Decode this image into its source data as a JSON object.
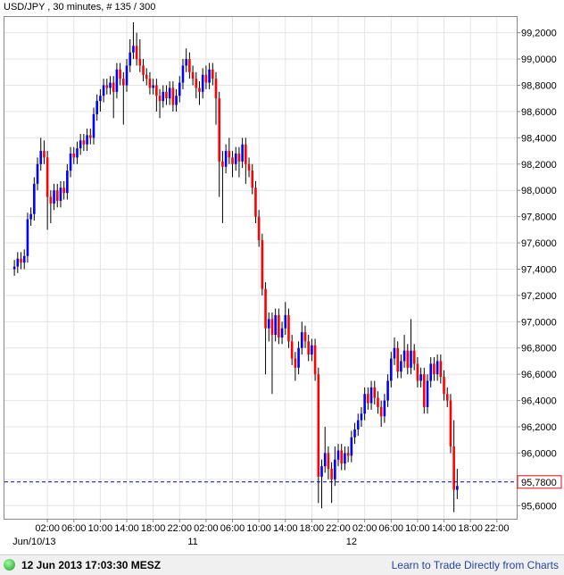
{
  "chart_data": {
    "type": "candlestick",
    "title": "USD/JPY , 30 minutes, # 135 / 300",
    "x": [
      -3,
      -2.5,
      -2,
      -1.5,
      -1,
      -0.5,
      0,
      0.5,
      1,
      1.5,
      2,
      2.5,
      3,
      3.5,
      4,
      4.5,
      5,
      5.5,
      6,
      6.5,
      7,
      7.5,
      8,
      8.5,
      9,
      9.5,
      10,
      10.5,
      11,
      11.5,
      12,
      12.5,
      13,
      13.5,
      14,
      14.5,
      15,
      15.5,
      16,
      16.5,
      17,
      17.5,
      18,
      18.5,
      19,
      19.5,
      20,
      20.5,
      21,
      21.5,
      22,
      22.5,
      23,
      23.5,
      24,
      24.5,
      25,
      25.5,
      26,
      26.5,
      27,
      27.5,
      28,
      28.5,
      29,
      29.5,
      30,
      30.5,
      31,
      31.5,
      32,
      32.5,
      33,
      33.5,
      34,
      34.5,
      35,
      35.5,
      36,
      36.5,
      37,
      37.5,
      38,
      38.5,
      39,
      39.5,
      40,
      40.5,
      41,
      41.5,
      42,
      42.5,
      43,
      43.5,
      44,
      44.5,
      45,
      45.5,
      46,
      46.5,
      47,
      47.5,
      48,
      48.5,
      49,
      49.5,
      50,
      50.5,
      51,
      51.5,
      52,
      52.5,
      53,
      53.5,
      54,
      54.5,
      55,
      55.5,
      56,
      56.5,
      57,
      57.5,
      58,
      58.5,
      59,
      59.5,
      60,
      60.5,
      61,
      61.5,
      62,
      62.5,
      63,
      63.5,
      64
    ],
    "open": [
      97.4,
      97.42,
      97.48,
      97.45,
      97.5,
      97.78,
      97.82,
      98.05,
      98.2,
      98.3,
      98.25,
      97.95,
      97.9,
      98.0,
      97.92,
      98.02,
      97.98,
      98.15,
      98.28,
      98.25,
      98.32,
      98.38,
      98.35,
      98.42,
      98.4,
      98.58,
      98.68,
      98.72,
      98.8,
      98.78,
      98.82,
      98.75,
      98.92,
      98.85,
      98.8,
      98.95,
      99.05,
      99.1,
      99.0,
      98.95,
      98.88,
      98.85,
      98.78,
      98.8,
      98.72,
      98.68,
      98.75,
      98.7,
      98.78,
      98.65,
      98.72,
      98.82,
      98.95,
      99.0,
      98.9,
      98.85,
      98.78,
      98.75,
      98.88,
      98.82,
      98.92,
      98.85,
      98.7,
      98.22,
      98.18,
      98.3,
      98.25,
      98.2,
      98.28,
      98.22,
      98.35,
      98.2,
      98.15,
      98.02,
      97.8,
      97.62,
      97.25,
      96.95,
      97.02,
      96.9,
      97.05,
      96.88,
      96.95,
      97.05,
      96.85,
      96.72,
      96.65,
      96.8,
      96.92,
      96.85,
      96.75,
      96.82,
      96.6,
      95.82,
      95.9,
      96.0,
      95.88,
      95.8,
      95.95,
      96.02,
      95.92,
      96.0,
      95.98,
      96.12,
      96.18,
      96.25,
      96.3,
      96.45,
      96.38,
      96.5,
      96.42,
      96.35,
      96.28,
      96.4,
      96.55,
      96.72,
      96.8,
      96.62,
      96.7,
      96.78,
      96.65,
      96.78,
      96.68,
      96.55,
      96.6,
      96.35,
      96.55,
      96.68,
      96.6,
      96.7,
      96.58,
      96.45,
      96.4,
      96.05,
      95.72
    ],
    "high": [
      97.47,
      97.53,
      97.53,
      97.55,
      97.83,
      97.87,
      98.1,
      98.25,
      98.4,
      98.38,
      98.3,
      98.0,
      98.05,
      98.05,
      98.07,
      98.07,
      98.2,
      98.33,
      98.33,
      98.37,
      98.43,
      98.43,
      98.47,
      98.47,
      98.63,
      98.73,
      98.77,
      98.85,
      98.85,
      98.87,
      98.87,
      98.97,
      98.97,
      98.9,
      99.0,
      99.15,
      99.28,
      99.2,
      99.15,
      99.0,
      98.93,
      98.9,
      98.85,
      98.85,
      98.77,
      98.8,
      98.8,
      98.83,
      98.83,
      98.77,
      98.87,
      99.0,
      99.08,
      99.05,
      98.95,
      98.9,
      98.83,
      98.93,
      98.95,
      98.97,
      98.97,
      98.9,
      98.75,
      98.3,
      98.35,
      98.4,
      98.3,
      98.33,
      98.33,
      98.4,
      98.4,
      98.25,
      98.2,
      98.07,
      97.85,
      97.67,
      97.3,
      97.07,
      97.07,
      97.1,
      97.1,
      97.0,
      97.15,
      97.1,
      96.9,
      96.77,
      96.85,
      97.0,
      96.97,
      96.9,
      96.87,
      96.87,
      96.65,
      95.95,
      96.2,
      96.05,
      95.93,
      96.05,
      96.07,
      96.07,
      96.05,
      96.05,
      96.17,
      96.23,
      96.3,
      96.35,
      96.5,
      96.5,
      96.55,
      96.55,
      96.47,
      96.4,
      96.45,
      96.6,
      96.77,
      96.88,
      96.85,
      96.75,
      96.9,
      96.83,
      97.02,
      96.83,
      96.73,
      96.65,
      96.65,
      96.6,
      96.73,
      96.73,
      96.75,
      96.75,
      96.63,
      96.5,
      96.45,
      96.25,
      95.88
    ],
    "low": [
      97.35,
      97.37,
      97.4,
      97.4,
      97.45,
      97.73,
      97.77,
      98.0,
      98.15,
      98.2,
      97.7,
      97.75,
      97.85,
      97.87,
      97.87,
      97.93,
      97.93,
      98.1,
      98.2,
      98.2,
      98.27,
      98.3,
      98.3,
      98.35,
      98.35,
      98.53,
      98.6,
      98.67,
      98.73,
      98.73,
      98.55,
      98.7,
      98.8,
      98.5,
      98.75,
      98.9,
      99.0,
      98.95,
      98.9,
      98.83,
      98.8,
      98.73,
      98.73,
      98.6,
      98.55,
      98.63,
      98.65,
      98.65,
      98.6,
      98.6,
      98.67,
      98.77,
      98.9,
      98.85,
      98.8,
      98.7,
      98.65,
      98.7,
      98.77,
      98.77,
      98.8,
      98.5,
      97.95,
      97.75,
      98.13,
      98.2,
      98.1,
      98.15,
      98.1,
      98.17,
      98.05,
      98.1,
      97.97,
      97.75,
      97.57,
      97.2,
      96.6,
      96.85,
      96.45,
      96.85,
      96.83,
      96.83,
      96.9,
      96.8,
      96.67,
      96.55,
      96.6,
      96.75,
      96.8,
      96.7,
      96.7,
      96.55,
      95.62,
      95.58,
      95.85,
      95.8,
      95.62,
      95.75,
      95.9,
      95.87,
      95.87,
      95.93,
      95.93,
      96.07,
      96.13,
      96.2,
      96.25,
      96.33,
      96.33,
      96.37,
      96.3,
      96.2,
      96.23,
      96.35,
      96.5,
      96.67,
      96.57,
      96.57,
      96.65,
      96.6,
      96.6,
      96.63,
      96.5,
      96.5,
      96.3,
      96.3,
      96.5,
      96.55,
      96.55,
      96.53,
      96.4,
      96.35,
      96.0,
      95.55,
      95.65
    ],
    "close": [
      97.42,
      97.48,
      97.45,
      97.5,
      97.78,
      97.82,
      98.05,
      98.2,
      98.3,
      98.25,
      97.95,
      97.9,
      98.0,
      97.92,
      98.02,
      97.98,
      98.15,
      98.28,
      98.25,
      98.32,
      98.38,
      98.35,
      98.42,
      98.4,
      98.58,
      98.68,
      98.72,
      98.8,
      98.78,
      98.82,
      98.75,
      98.92,
      98.85,
      98.8,
      98.95,
      99.05,
      99.1,
      99.0,
      98.95,
      98.88,
      98.85,
      98.78,
      98.8,
      98.72,
      98.68,
      98.75,
      98.7,
      98.78,
      98.65,
      98.72,
      98.82,
      98.95,
      99.0,
      98.9,
      98.85,
      98.78,
      98.75,
      98.88,
      98.82,
      98.92,
      98.85,
      98.7,
      98.22,
      98.18,
      98.3,
      98.25,
      98.2,
      98.28,
      98.22,
      98.35,
      98.2,
      98.15,
      98.02,
      97.8,
      97.62,
      97.25,
      96.95,
      97.02,
      96.9,
      97.05,
      96.88,
      96.95,
      97.05,
      96.85,
      96.72,
      96.65,
      96.8,
      96.92,
      96.85,
      96.75,
      96.82,
      96.6,
      95.82,
      95.9,
      96.0,
      95.88,
      95.8,
      95.95,
      96.02,
      95.92,
      96.0,
      95.98,
      96.12,
      96.18,
      96.25,
      96.3,
      96.45,
      96.38,
      96.5,
      96.42,
      96.35,
      96.28,
      96.4,
      96.55,
      96.72,
      96.8,
      96.62,
      96.7,
      96.78,
      96.65,
      96.78,
      96.68,
      96.55,
      96.6,
      96.35,
      96.55,
      96.68,
      96.6,
      96.7,
      96.58,
      96.45,
      96.4,
      96.05,
      95.72,
      95.75
    ],
    "up_color": "#0000ff",
    "down_color": "#ff0000",
    "xlim": [
      -4.5,
      73
    ],
    "xticks": [
      {
        "value": 2,
        "label": "02:00"
      },
      {
        "value": 6,
        "label": "06:00"
      },
      {
        "value": 10,
        "label": "10:00"
      },
      {
        "value": 14,
        "label": "14:00"
      },
      {
        "value": 18,
        "label": "18:00"
      },
      {
        "value": 22,
        "label": "22:00"
      },
      {
        "value": 26,
        "label": "02:00"
      },
      {
        "value": 30,
        "label": "06:00"
      },
      {
        "value": 34,
        "label": "10:00"
      },
      {
        "value": 38,
        "label": "14:00"
      },
      {
        "value": 42,
        "label": "18:00"
      },
      {
        "value": 46,
        "label": "22:00"
      },
      {
        "value": 50,
        "label": "02:00"
      },
      {
        "value": 54,
        "label": "06:00"
      },
      {
        "value": 58,
        "label": "10:00"
      },
      {
        "value": 62,
        "label": "14:00"
      },
      {
        "value": 66,
        "label": "18:00"
      },
      {
        "value": 70,
        "label": "22:00"
      }
    ],
    "date_labels": [
      {
        "value": 0,
        "label": "Jun/10/13"
      },
      {
        "value": 24,
        "label": "11"
      },
      {
        "value": 48,
        "label": "12"
      }
    ],
    "ylim": [
      95.5,
      99.32
    ],
    "yticks": [
      {
        "value": 95.6,
        "label": "95,6000"
      },
      {
        "value": 95.8,
        "label": "95,8000"
      },
      {
        "value": 96.0,
        "label": "96,0000"
      },
      {
        "value": 96.2,
        "label": "96,2000"
      },
      {
        "value": 96.4,
        "label": "96,4000"
      },
      {
        "value": 96.6,
        "label": "96,6000"
      },
      {
        "value": 96.8,
        "label": "96,8000"
      },
      {
        "value": 97.0,
        "label": "97,0000"
      },
      {
        "value": 97.2,
        "label": "97,2000"
      },
      {
        "value": 97.4,
        "label": "97,4000"
      },
      {
        "value": 97.6,
        "label": "97,6000"
      },
      {
        "value": 97.8,
        "label": "97,8000"
      },
      {
        "value": 98.0,
        "label": "98,0000"
      },
      {
        "value": 98.2,
        "label": "98,2000"
      },
      {
        "value": 98.4,
        "label": "98,4000"
      },
      {
        "value": 98.6,
        "label": "98,6000"
      },
      {
        "value": 98.8,
        "label": "98,8000"
      },
      {
        "value": 99.0,
        "label": "99,0000"
      },
      {
        "value": 99.2,
        "label": "99,2000"
      }
    ],
    "grid": true,
    "current_price": {
      "value": 95.78,
      "label": "95,7800"
    },
    "current_price_color": "#0000cc"
  },
  "footer": {
    "timestamp": "12 Jun 2013 17:03:30 MESZ",
    "link": "Learn to Trade Directly from Charts"
  }
}
